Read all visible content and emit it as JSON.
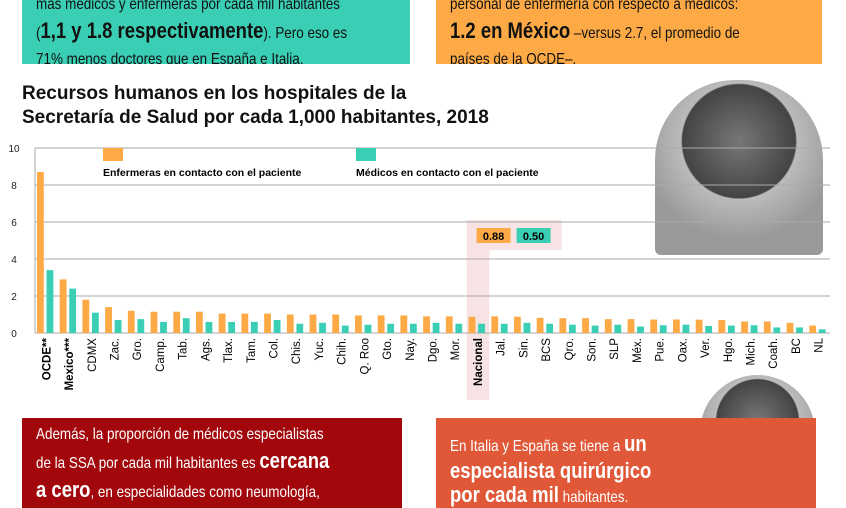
{
  "top_left": {
    "line1": "más médicos y enfermeras por cada mil habitantes",
    "bold": "1,1 y 1.8 respectivamente",
    "after": ". Pero eso es",
    "line3": "71% menos doctores que en España e Italia."
  },
  "top_right": {
    "line1": "personal de enfermería con respecto a médicos:",
    "bold": "1.2 en México",
    "after": " –versus 2.7, el promedio de",
    "line3": "países de la OCDE–."
  },
  "bottom_left": {
    "line1": "Además, la proporción de médicos especialistas",
    "line2a": "de la SSA por cada mil habitantes es ",
    "bold1": "cercana",
    "bold2": "a cero",
    "line3": ", en especialidades como neumología,"
  },
  "bottom_right": {
    "pre": "En Italia y España se tiene a ",
    "bold1": "un",
    "bold2": "especialista quirúrgico",
    "bold3": "por cada mil",
    "post": " habitantes."
  },
  "colors": {
    "nurses": "#fdaa46",
    "doctors": "#3acfb4",
    "highlight": "#f7e3e3"
  },
  "chart_data": {
    "type": "bar",
    "title": "Recursos humanos en los hospitales de la Secretaría de Salud por cada 1,000 habitantes, 2018",
    "title_line1": "Recursos humanos en los hospitales de la",
    "title_line2": "Secretaría de Salud por cada 1,000 habitantes, 2018",
    "ylim": [
      0,
      10
    ],
    "yticks": [
      0,
      2,
      4,
      6,
      8,
      10
    ],
    "grid": true,
    "legend_placement": "top",
    "categories": [
      "OCDE**",
      "Mexico***",
      "CDMX",
      "Zac.",
      "Gro.",
      "Camp.",
      "Tab.",
      "Ags.",
      "Tlax.",
      "Tam.",
      "Col.",
      "Chis.",
      "Yuc.",
      "Chih.",
      "Q. Roo",
      "Gto.",
      "Nay.",
      "Dgo.",
      "Mor.",
      "Nacional",
      "Jal.",
      "Sin.",
      "BCS",
      "Qro.",
      "Son.",
      "SLP",
      "Méx.",
      "Pue.",
      "Oax.",
      "Ver.",
      "Hgo.",
      "Mich.",
      "Coah.",
      "BC",
      "NL"
    ],
    "bold_categories": [
      "OCDE**",
      "Mexico***",
      "Nacional"
    ],
    "highlight": "Nacional",
    "highlight_labels": [
      "0.88",
      "0.50"
    ],
    "series": [
      {
        "name": "Enfermeras en contacto con el paciente",
        "values": [
          8.7,
          2.9,
          1.8,
          1.4,
          1.2,
          1.15,
          1.15,
          1.15,
          1.05,
          1.05,
          1.05,
          1.0,
          1.0,
          1.0,
          0.95,
          0.95,
          0.95,
          0.9,
          0.9,
          0.88,
          0.9,
          0.88,
          0.82,
          0.8,
          0.8,
          0.75,
          0.75,
          0.73,
          0.73,
          0.72,
          0.7,
          0.62,
          0.62,
          0.55,
          0.4
        ]
      },
      {
        "name": "Médicos en contacto con el paciente",
        "values": [
          3.4,
          2.4,
          1.1,
          0.7,
          0.75,
          0.6,
          0.8,
          0.6,
          0.6,
          0.6,
          0.7,
          0.5,
          0.55,
          0.4,
          0.45,
          0.5,
          0.5,
          0.55,
          0.5,
          0.5,
          0.5,
          0.55,
          0.5,
          0.45,
          0.4,
          0.45,
          0.35,
          0.42,
          0.45,
          0.38,
          0.4,
          0.42,
          0.3,
          0.3,
          0.2
        ]
      }
    ]
  }
}
